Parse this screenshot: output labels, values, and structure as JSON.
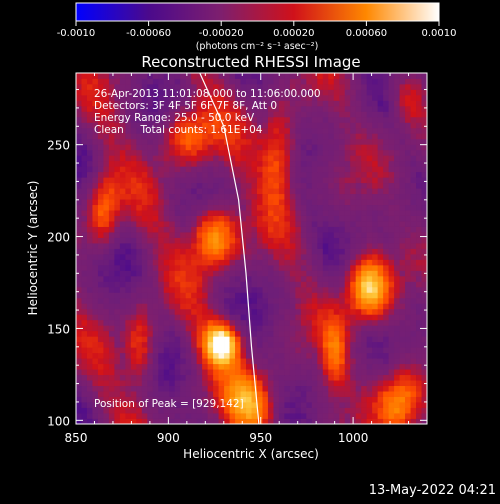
{
  "chart_data": {
    "type": "heatmap",
    "title": "Reconstructed RHESSI Image",
    "xlabel": "Heliocentric X (arcsec)",
    "ylabel": "Heliocentric Y (arcsec)",
    "xlim": [
      850,
      1040
    ],
    "ylim": [
      98,
      289
    ],
    "x_ticks": [
      850,
      900,
      950,
      1000
    ],
    "y_ticks": [
      100,
      150,
      200,
      250
    ],
    "x_tick_labels": [
      "850",
      "900",
      "950",
      "1000"
    ],
    "y_tick_labels": [
      "100",
      "150",
      "200",
      "250"
    ],
    "info_lines": [
      "26-Apr-2013 11:01:08.000 to 11:06:00.000",
      "Detectors: 3F 4F 5F 6F 7F 8F, Att 0",
      "Energy Range: 25.0 - 50.0 keV",
      "Clean     Total counts: 1.61E+04"
    ],
    "peak_label": "Position of Peak = [929,142]",
    "peak": [
      929,
      142
    ],
    "colorbar": {
      "range": [
        -0.001,
        0.001
      ],
      "tick_labels": [
        "-0.0010",
        "-0.00060",
        "-0.00020",
        "0.00020",
        "0.00060",
        "0.0010"
      ],
      "unit_label": "(photons cm⁻² s⁻¹ asec⁻²)",
      "colors": [
        "#0000ff",
        "#4b0a8c",
        "#7e1f6e",
        "#d0111a",
        "#ff8800",
        "#ffffff"
      ]
    },
    "limb_line": {
      "description_hidden": true,
      "points": [
        [
          917,
          289
        ],
        [
          930,
          260
        ],
        [
          938,
          220
        ],
        [
          942,
          180
        ],
        [
          945,
          140
        ],
        [
          949,
          98
        ]
      ]
    },
    "sources": [
      {
        "x": 929,
        "y": 142,
        "amp": 1.0,
        "sx": 7,
        "sy": 8
      },
      {
        "x": 925,
        "y": 200,
        "amp": 0.78,
        "sx": 9,
        "sy": 12
      },
      {
        "x": 1008,
        "y": 172,
        "amp": 0.82,
        "sx": 8,
        "sy": 12
      },
      {
        "x": 865,
        "y": 215,
        "amp": 0.55,
        "sx": 6,
        "sy": 14
      },
      {
        "x": 960,
        "y": 245,
        "amp": 0.55,
        "sx": 7,
        "sy": 18
      },
      {
        "x": 1025,
        "y": 110,
        "amp": 0.6,
        "sx": 8,
        "sy": 12
      },
      {
        "x": 885,
        "y": 140,
        "amp": 0.45,
        "sx": 6,
        "sy": 16
      },
      {
        "x": 910,
        "y": 255,
        "amp": 0.55,
        "sx": 10,
        "sy": 12
      },
      {
        "x": 945,
        "y": 110,
        "amp": 0.6,
        "sx": 10,
        "sy": 12
      },
      {
        "x": 990,
        "y": 135,
        "amp": 0.45,
        "sx": 5,
        "sy": 14
      },
      {
        "x": 1030,
        "y": 275,
        "amp": 0.3,
        "sx": 6,
        "sy": 10
      }
    ]
  },
  "timestamp": "13-May-2022 04:21"
}
